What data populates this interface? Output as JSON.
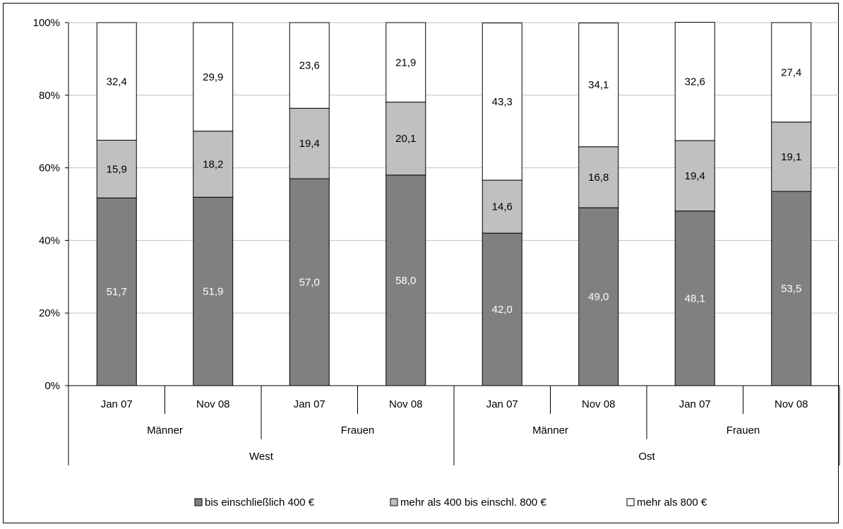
{
  "chart_data": {
    "type": "bar",
    "stacked": true,
    "categories": [
      {
        "region": "West",
        "gender": "Männer",
        "period": "Jan 07"
      },
      {
        "region": "West",
        "gender": "Männer",
        "period": "Nov 08"
      },
      {
        "region": "West",
        "gender": "Frauen",
        "period": "Jan 07"
      },
      {
        "region": "West",
        "gender": "Frauen",
        "period": "Nov 08"
      },
      {
        "region": "Ost",
        "gender": "Männer",
        "period": "Jan 07"
      },
      {
        "region": "Ost",
        "gender": "Männer",
        "period": "Nov 08"
      },
      {
        "region": "Ost",
        "gender": "Frauen",
        "period": "Jan 07"
      },
      {
        "region": "Ost",
        "gender": "Frauen",
        "period": "Nov 08"
      }
    ],
    "series": [
      {
        "name": "bis einschließlich 400 €",
        "color": "#808080",
        "label_color": "#ffffff",
        "values": [
          51.7,
          51.9,
          57.0,
          58.0,
          42.0,
          49.0,
          48.1,
          53.5
        ],
        "labels": [
          "51,7",
          "51,9",
          "57,0",
          "58,0",
          "42,0",
          "49,0",
          "48,1",
          "53,5"
        ]
      },
      {
        "name": "mehr als 400 bis einschl. 800 €",
        "color": "#c0c0c0",
        "label_color": "#000000",
        "values": [
          15.9,
          18.2,
          19.4,
          20.1,
          14.6,
          16.8,
          19.4,
          19.1
        ],
        "labels": [
          "15,9",
          "18,2",
          "19,4",
          "20,1",
          "14,6",
          "16,8",
          "19,4",
          "19,1"
        ]
      },
      {
        "name": "mehr als 800 €",
        "color": "#ffffff",
        "label_color": "#000000",
        "values": [
          32.4,
          29.9,
          23.6,
          21.9,
          43.3,
          34.1,
          32.6,
          27.4
        ],
        "labels": [
          "32,4",
          "29,9",
          "23,6",
          "21,9",
          "43,3",
          "34,1",
          "32,6",
          "27,4"
        ]
      }
    ],
    "y_ticks": [
      0,
      20,
      40,
      60,
      80,
      100
    ],
    "y_tick_labels": [
      "0%",
      "20%",
      "40%",
      "60%",
      "80%",
      "100%"
    ],
    "ylim": [
      0,
      100
    ],
    "grid": true,
    "legend_position": "bottom",
    "groups_level1": [
      "Männer",
      "Frauen",
      "Männer",
      "Frauen"
    ],
    "groups_level2": [
      "West",
      "Ost"
    ]
  }
}
